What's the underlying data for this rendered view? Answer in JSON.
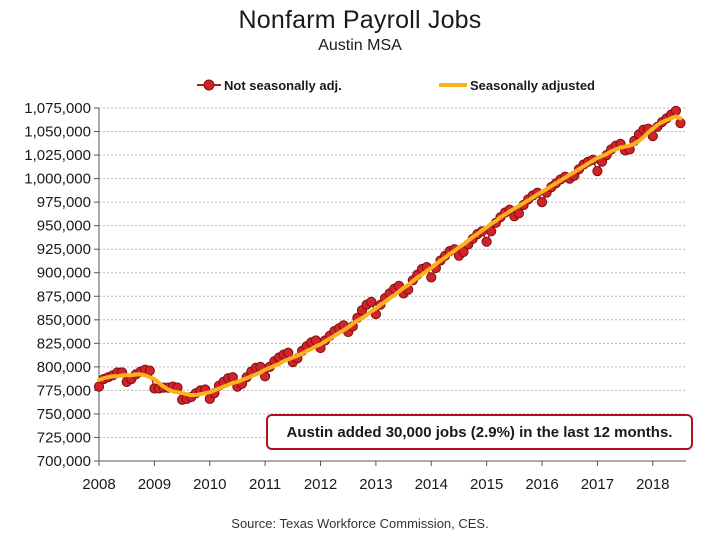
{
  "chart_data": {
    "type": "line",
    "title": "Nonfarm Payroll Jobs",
    "subtitle": "Austin MSA",
    "xlabel": "",
    "ylabel": "",
    "ylim": [
      700000,
      1075000
    ],
    "yticks": [
      "1,075,000",
      "1,050,000",
      "1,025,000",
      "1,000,000",
      "975,000",
      "950,000",
      "925,000",
      "900,000",
      "875,000",
      "850,000",
      "825,000",
      "800,000",
      "775,000",
      "750,000",
      "725,000",
      "700,000"
    ],
    "xticks": [
      "2008",
      "2009",
      "2010",
      "2011",
      "2012",
      "2013",
      "2014",
      "2015",
      "2016",
      "2017",
      "2018"
    ],
    "grid": true,
    "legend_position": "top",
    "series": [
      {
        "name": "Not seasonally adj.",
        "color": "#d2232a",
        "marker": "circle",
        "x": [
          2008.0,
          2008.083,
          2008.167,
          2008.25,
          2008.333,
          2008.417,
          2008.5,
          2008.583,
          2008.667,
          2008.75,
          2008.833,
          2008.917,
          2009.0,
          2009.083,
          2009.167,
          2009.25,
          2009.333,
          2009.417,
          2009.5,
          2009.583,
          2009.667,
          2009.75,
          2009.833,
          2009.917,
          2010.0,
          2010.083,
          2010.167,
          2010.25,
          2010.333,
          2010.417,
          2010.5,
          2010.583,
          2010.667,
          2010.75,
          2010.833,
          2010.917,
          2011.0,
          2011.083,
          2011.167,
          2011.25,
          2011.333,
          2011.417,
          2011.5,
          2011.583,
          2011.667,
          2011.75,
          2011.833,
          2011.917,
          2012.0,
          2012.083,
          2012.167,
          2012.25,
          2012.333,
          2012.417,
          2012.5,
          2012.583,
          2012.667,
          2012.75,
          2012.833,
          2012.917,
          2013.0,
          2013.083,
          2013.167,
          2013.25,
          2013.333,
          2013.417,
          2013.5,
          2013.583,
          2013.667,
          2013.75,
          2013.833,
          2013.917,
          2014.0,
          2014.083,
          2014.167,
          2014.25,
          2014.333,
          2014.417,
          2014.5,
          2014.583,
          2014.667,
          2014.75,
          2014.833,
          2014.917,
          2015.0,
          2015.083,
          2015.167,
          2015.25,
          2015.333,
          2015.417,
          2015.5,
          2015.583,
          2015.667,
          2015.75,
          2015.833,
          2015.917,
          2016.0,
          2016.083,
          2016.167,
          2016.25,
          2016.333,
          2016.417,
          2016.5,
          2016.583,
          2016.667,
          2016.75,
          2016.833,
          2016.917,
          2017.0,
          2017.083,
          2017.167,
          2017.25,
          2017.333,
          2017.417,
          2017.5,
          2017.583,
          2017.667,
          2017.75,
          2017.833,
          2017.917,
          2018.0,
          2018.083,
          2018.167,
          2018.25,
          2018.333,
          2018.417,
          2018.5
        ],
        "values": [
          779000,
          787000,
          789000,
          791000,
          794000,
          794000,
          784000,
          787000,
          792000,
          795000,
          797000,
          796000,
          777000,
          777000,
          778000,
          778000,
          779000,
          778000,
          765000,
          766000,
          768000,
          772000,
          775000,
          776000,
          766000,
          772000,
          780000,
          784000,
          788000,
          789000,
          779000,
          782000,
          789000,
          795000,
          799000,
          800000,
          790000,
          800000,
          806000,
          810000,
          813000,
          815000,
          805000,
          809000,
          817000,
          822000,
          826000,
          828000,
          820000,
          828000,
          833000,
          838000,
          841000,
          844000,
          837000,
          843000,
          852000,
          860000,
          866000,
          869000,
          856000,
          866000,
          873000,
          878000,
          883000,
          886000,
          878000,
          882000,
          892000,
          898000,
          904000,
          906000,
          895000,
          905000,
          913000,
          918000,
          923000,
          925000,
          918000,
          922000,
          930000,
          936000,
          941000,
          944000,
          933000,
          944000,
          953000,
          959000,
          964000,
          967000,
          960000,
          963000,
          972000,
          978000,
          982000,
          985000,
          975000,
          985000,
          991000,
          995000,
          999000,
          1002000,
          1000000,
          1003000,
          1010000,
          1015000,
          1018000,
          1020000,
          1008000,
          1018000,
          1025000,
          1031000,
          1035000,
          1037000,
          1030000,
          1031000,
          1040000,
          1047000,
          1052000,
          1053000,
          1045000,
          1055000,
          1060000,
          1064000,
          1068000,
          1072000,
          1059000
        ]
      },
      {
        "name": "Seasonally adjusted",
        "color": "#fbb21c",
        "marker": "none",
        "x": [
          2008.0,
          2008.083,
          2008.167,
          2008.25,
          2008.333,
          2008.417,
          2008.5,
          2008.583,
          2008.667,
          2008.75,
          2008.833,
          2008.917,
          2009.0,
          2009.083,
          2009.167,
          2009.25,
          2009.333,
          2009.417,
          2009.5,
          2009.583,
          2009.667,
          2009.75,
          2009.833,
          2009.917,
          2010.0,
          2010.083,
          2010.167,
          2010.25,
          2010.333,
          2010.417,
          2010.5,
          2010.583,
          2010.667,
          2010.75,
          2010.833,
          2010.917,
          2011.0,
          2011.083,
          2011.167,
          2011.25,
          2011.333,
          2011.417,
          2011.5,
          2011.583,
          2011.667,
          2011.75,
          2011.833,
          2011.917,
          2012.0,
          2012.083,
          2012.167,
          2012.25,
          2012.333,
          2012.417,
          2012.5,
          2012.583,
          2012.667,
          2012.75,
          2012.833,
          2012.917,
          2013.0,
          2013.083,
          2013.167,
          2013.25,
          2013.333,
          2013.417,
          2013.5,
          2013.583,
          2013.667,
          2013.75,
          2013.833,
          2013.917,
          2014.0,
          2014.083,
          2014.167,
          2014.25,
          2014.333,
          2014.417,
          2014.5,
          2014.583,
          2014.667,
          2014.75,
          2014.833,
          2014.917,
          2015.0,
          2015.083,
          2015.167,
          2015.25,
          2015.333,
          2015.417,
          2015.5,
          2015.583,
          2015.667,
          2015.75,
          2015.833,
          2015.917,
          2016.0,
          2016.083,
          2016.167,
          2016.25,
          2016.333,
          2016.417,
          2016.5,
          2016.583,
          2016.667,
          2016.75,
          2016.833,
          2016.917,
          2017.0,
          2017.083,
          2017.167,
          2017.25,
          2017.333,
          2017.417,
          2017.5,
          2017.583,
          2017.667,
          2017.75,
          2017.833,
          2017.917,
          2018.0,
          2018.083,
          2018.167,
          2018.25,
          2018.333,
          2018.417,
          2018.5
        ],
        "values": [
          786000,
          788000,
          789000,
          790000,
          790000,
          791000,
          791000,
          791000,
          792000,
          792000,
          791000,
          789000,
          787000,
          783000,
          779000,
          776000,
          774000,
          773000,
          772000,
          771000,
          770000,
          770000,
          771000,
          772000,
          773000,
          775000,
          777000,
          779000,
          781000,
          783000,
          784000,
          786000,
          788000,
          790000,
          792000,
          794000,
          797000,
          799000,
          801000,
          803000,
          806000,
          808000,
          810000,
          812000,
          814000,
          817000,
          819000,
          822000,
          824000,
          827000,
          830000,
          833000,
          836000,
          839000,
          842000,
          846000,
          849000,
          852000,
          855000,
          859000,
          862000,
          866000,
          869000,
          873000,
          876000,
          880000,
          884000,
          887000,
          891000,
          895000,
          898000,
          902000,
          905000,
          909000,
          913000,
          916000,
          920000,
          923000,
          927000,
          930000,
          934000,
          938000,
          941000,
          945000,
          948000,
          952000,
          955000,
          959000,
          962000,
          965000,
          968000,
          971000,
          974000,
          977000,
          980000,
          983000,
          986000,
          989000,
          992000,
          995000,
          998000,
          1001000,
          1004000,
          1007000,
          1010000,
          1013000,
          1016000,
          1019000,
          1022000,
          1024000,
          1026000,
          1029000,
          1031000,
          1033000,
          1034000,
          1035000,
          1037000,
          1040000,
          1044000,
          1049000,
          1053000,
          1057000,
          1060000,
          1062000,
          1064000,
          1066000,
          1064000
        ]
      }
    ],
    "annotation": "Austin added 30,000 jobs (2.9%) in the last 12 months.",
    "source": "Source: Texas Workforce Commission, CES."
  }
}
